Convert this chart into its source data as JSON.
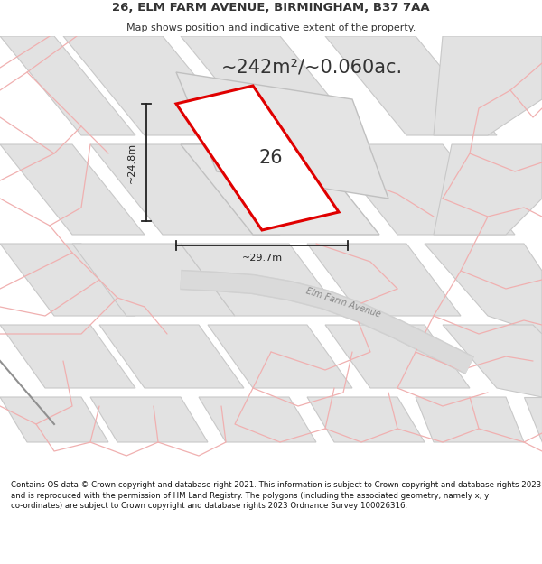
{
  "title": "26, ELM FARM AVENUE, BIRMINGHAM, B37 7AA",
  "subtitle": "Map shows position and indicative extent of the property.",
  "footer": "Contains OS data © Crown copyright and database right 2021. This information is subject to Crown copyright and database rights 2023 and is reproduced with the permission of HM Land Registry. The polygons (including the associated geometry, namely x, y co-ordinates) are subject to Crown copyright and database rights 2023 Ordnance Survey 100026316.",
  "area_label": "~242m²/~0.060ac.",
  "width_label": "~29.7m",
  "height_label": "~24.8m",
  "plot_number": "26",
  "street_name": "Elm Farm Avenue",
  "bg_color": "#f0f0f0",
  "building_color": "#e2e2e2",
  "building_edge": "#c8c8c8",
  "highlight_block_color": "#e8e8e8",
  "plot_fill": "#f5f5f5",
  "plot_edge": "#e00000",
  "pink": "#f0b0b0",
  "road_color": "#d8d8d8",
  "road_edge": "#c0c0c0",
  "dim_color": "#222222",
  "text_color": "#333333",
  "footer_color": "#111111",
  "street_color": "#888888"
}
